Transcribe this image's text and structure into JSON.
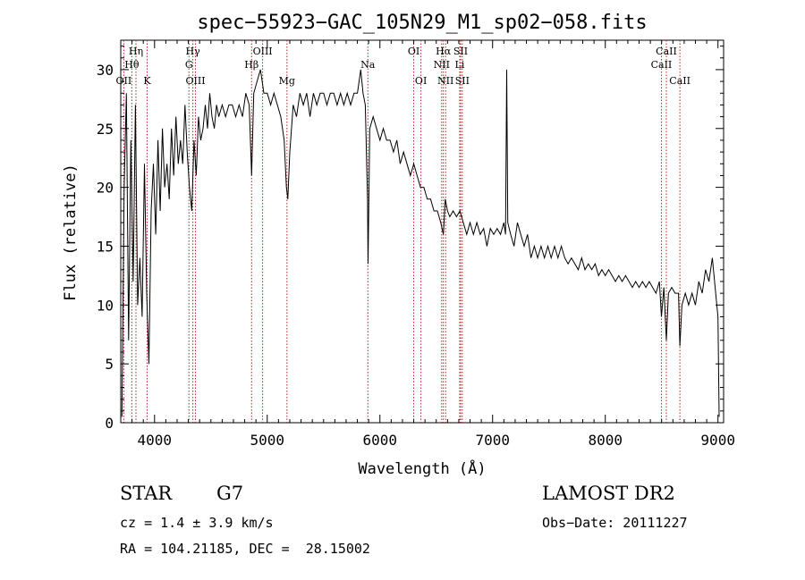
{
  "chart_data": {
    "type": "line",
    "title": "spec−55923−GAC_105N29_M1_sp02−058.fits",
    "xlabel": "Wavelength (Å)",
    "ylabel": "Flux (relative)",
    "xlim": [
      3700,
      9050
    ],
    "ylim": [
      0,
      32.5
    ],
    "xticks": [
      4000,
      5000,
      6000,
      7000,
      8000,
      9000
    ],
    "yticks": [
      0,
      5,
      10,
      15,
      20,
      25,
      30
    ],
    "grid": false,
    "line_color": "#000000",
    "marker_color": "#b22222",
    "spectrum": [
      [
        3710,
        0.5
      ],
      [
        3730,
        20
      ],
      [
        3750,
        28
      ],
      [
        3770,
        7
      ],
      [
        3790,
        24
      ],
      [
        3810,
        12
      ],
      [
        3830,
        27
      ],
      [
        3850,
        10
      ],
      [
        3870,
        14
      ],
      [
        3890,
        9
      ],
      [
        3910,
        22
      ],
      [
        3930,
        11
      ],
      [
        3950,
        5
      ],
      [
        3970,
        18
      ],
      [
        3990,
        22
      ],
      [
        4010,
        16
      ],
      [
        4030,
        24
      ],
      [
        4050,
        18
      ],
      [
        4070,
        25
      ],
      [
        4090,
        20
      ],
      [
        4110,
        22
      ],
      [
        4130,
        19
      ],
      [
        4150,
        25
      ],
      [
        4170,
        21
      ],
      [
        4190,
        26
      ],
      [
        4210,
        22
      ],
      [
        4230,
        24
      ],
      [
        4250,
        22
      ],
      [
        4270,
        27
      ],
      [
        4290,
        23
      ],
      [
        4310,
        20
      ],
      [
        4330,
        18
      ],
      [
        4350,
        24
      ],
      [
        4370,
        21
      ],
      [
        4390,
        26
      ],
      [
        4410,
        24
      ],
      [
        4430,
        25
      ],
      [
        4450,
        27
      ],
      [
        4470,
        25
      ],
      [
        4490,
        28
      ],
      [
        4510,
        26
      ],
      [
        4530,
        25
      ],
      [
        4550,
        27
      ],
      [
        4570,
        26
      ],
      [
        4600,
        27
      ],
      [
        4630,
        26
      ],
      [
        4660,
        27
      ],
      [
        4690,
        27
      ],
      [
        4720,
        26
      ],
      [
        4750,
        27
      ],
      [
        4780,
        26
      ],
      [
        4810,
        28
      ],
      [
        4840,
        27
      ],
      [
        4861,
        21
      ],
      [
        4880,
        28
      ],
      [
        4910,
        29
      ],
      [
        4940,
        30
      ],
      [
        4970,
        28
      ],
      [
        5000,
        28
      ],
      [
        5030,
        27
      ],
      [
        5060,
        28
      ],
      [
        5090,
        27
      ],
      [
        5120,
        26
      ],
      [
        5150,
        24
      ],
      [
        5170,
        20
      ],
      [
        5183,
        19
      ],
      [
        5200,
        23
      ],
      [
        5230,
        27
      ],
      [
        5260,
        26
      ],
      [
        5290,
        28
      ],
      [
        5320,
        27
      ],
      [
        5350,
        28
      ],
      [
        5380,
        26
      ],
      [
        5410,
        28
      ],
      [
        5440,
        27
      ],
      [
        5470,
        28
      ],
      [
        5500,
        28
      ],
      [
        5530,
        27
      ],
      [
        5560,
        28
      ],
      [
        5590,
        28
      ],
      [
        5620,
        27
      ],
      [
        5650,
        28
      ],
      [
        5680,
        27
      ],
      [
        5710,
        28
      ],
      [
        5740,
        27
      ],
      [
        5770,
        28
      ],
      [
        5800,
        28
      ],
      [
        5830,
        30
      ],
      [
        5850,
        28
      ],
      [
        5870,
        27
      ],
      [
        5890,
        19
      ],
      [
        5895,
        13.5
      ],
      [
        5910,
        25
      ],
      [
        5940,
        26
      ],
      [
        5970,
        25
      ],
      [
        6000,
        24
      ],
      [
        6030,
        25
      ],
      [
        6060,
        24
      ],
      [
        6090,
        24
      ],
      [
        6120,
        23
      ],
      [
        6150,
        24
      ],
      [
        6180,
        22
      ],
      [
        6210,
        23
      ],
      [
        6240,
        22
      ],
      [
        6270,
        21
      ],
      [
        6300,
        22
      ],
      [
        6330,
        21
      ],
      [
        6360,
        20
      ],
      [
        6390,
        20
      ],
      [
        6420,
        19
      ],
      [
        6450,
        19
      ],
      [
        6480,
        18
      ],
      [
        6510,
        18
      ],
      [
        6540,
        17
      ],
      [
        6563,
        16
      ],
      [
        6580,
        19
      ],
      [
        6600,
        18
      ],
      [
        6620,
        17.5
      ],
      [
        6650,
        18
      ],
      [
        6680,
        17.5
      ],
      [
        6710,
        18
      ],
      [
        6740,
        17
      ],
      [
        6770,
        16
      ],
      [
        6800,
        17
      ],
      [
        6830,
        16
      ],
      [
        6860,
        17
      ],
      [
        6890,
        16
      ],
      [
        6920,
        16.5
      ],
      [
        6950,
        15
      ],
      [
        6980,
        16.5
      ],
      [
        7010,
        16
      ],
      [
        7040,
        16.5
      ],
      [
        7070,
        16
      ],
      [
        7100,
        17
      ],
      [
        7115,
        16
      ],
      [
        7125,
        30
      ],
      [
        7135,
        17
      ],
      [
        7160,
        16
      ],
      [
        7190,
        15
      ],
      [
        7220,
        17
      ],
      [
        7250,
        16
      ],
      [
        7280,
        15
      ],
      [
        7310,
        16
      ],
      [
        7340,
        14
      ],
      [
        7370,
        15
      ],
      [
        7400,
        14
      ],
      [
        7430,
        15
      ],
      [
        7460,
        14
      ],
      [
        7490,
        15
      ],
      [
        7520,
        14
      ],
      [
        7550,
        15
      ],
      [
        7580,
        14
      ],
      [
        7610,
        15
      ],
      [
        7640,
        14
      ],
      [
        7670,
        13.5
      ],
      [
        7700,
        14
      ],
      [
        7730,
        13.5
      ],
      [
        7760,
        13
      ],
      [
        7790,
        14
      ],
      [
        7820,
        13
      ],
      [
        7850,
        13.5
      ],
      [
        7880,
        13
      ],
      [
        7910,
        13.5
      ],
      [
        7940,
        12.5
      ],
      [
        7970,
        13
      ],
      [
        8000,
        12.5
      ],
      [
        8030,
        13
      ],
      [
        8060,
        12.5
      ],
      [
        8090,
        12
      ],
      [
        8120,
        12.5
      ],
      [
        8150,
        12
      ],
      [
        8180,
        12.5
      ],
      [
        8210,
        12
      ],
      [
        8240,
        11.5
      ],
      [
        8270,
        12
      ],
      [
        8300,
        11.5
      ],
      [
        8330,
        12
      ],
      [
        8360,
        11.5
      ],
      [
        8390,
        12
      ],
      [
        8420,
        11.5
      ],
      [
        8450,
        11
      ],
      [
        8480,
        12
      ],
      [
        8498,
        9
      ],
      [
        8520,
        11.5
      ],
      [
        8542,
        7
      ],
      [
        8560,
        11
      ],
      [
        8590,
        11.5
      ],
      [
        8620,
        11
      ],
      [
        8650,
        11
      ],
      [
        8662,
        6.5
      ],
      [
        8680,
        10
      ],
      [
        8710,
        11
      ],
      [
        8740,
        10
      ],
      [
        8770,
        11
      ],
      [
        8800,
        10
      ],
      [
        8830,
        12
      ],
      [
        8860,
        11
      ],
      [
        8890,
        13
      ],
      [
        8920,
        12
      ],
      [
        8950,
        14
      ],
      [
        8970,
        12
      ],
      [
        8990,
        10
      ],
      [
        9000,
        9
      ],
      [
        9010,
        0.5
      ]
    ],
    "lines": [
      {
        "label": "Hη",
        "wavelength": 3835,
        "row": 1
      },
      {
        "label": "Hθ",
        "wavelength": 3798,
        "row": 2
      },
      {
        "label": "OII",
        "wavelength": 3727,
        "row": 3
      },
      {
        "label": "K",
        "wavelength": 3934,
        "row": 3
      },
      {
        "label": "Hγ",
        "wavelength": 4340,
        "row": 1
      },
      {
        "label": "G",
        "wavelength": 4305,
        "row": 2
      },
      {
        "label": "OIII",
        "wavelength": 4363,
        "row": 3
      },
      {
        "label": "OIII",
        "wavelength": 4959,
        "row": 1
      },
      {
        "label": "Hβ",
        "wavelength": 4861,
        "row": 2
      },
      {
        "label": "Mg",
        "wavelength": 5175,
        "row": 3
      },
      {
        "label": "Na",
        "wavelength": 5893,
        "row": 2
      },
      {
        "label": "OI",
        "wavelength": 6300,
        "row": 1
      },
      {
        "label": "OI",
        "wavelength": 6364,
        "row": 3
      },
      {
        "label": "Hα",
        "wavelength": 6563,
        "row": 1
      },
      {
        "label": "SII",
        "wavelength": 6716,
        "row": 1
      },
      {
        "label": "NII",
        "wavelength": 6548,
        "row": 2
      },
      {
        "label": "Li",
        "wavelength": 6708,
        "row": 2
      },
      {
        "label": "NII",
        "wavelength": 6583,
        "row": 3
      },
      {
        "label": "SII",
        "wavelength": 6731,
        "row": 3
      },
      {
        "label": "CaII",
        "wavelength": 8542,
        "row": 1
      },
      {
        "label": "CaII",
        "wavelength": 8498,
        "row": 2
      },
      {
        "label": "CaII",
        "wavelength": 8662,
        "row": 3
      }
    ]
  },
  "info": {
    "class": "STAR",
    "subclass": "G7",
    "survey": "LAMOST DR2",
    "cz": "cz = 1.4 ± 3.9 km/s",
    "obs_date": "Obs−Date: 20111227",
    "coords": "RA = 104.21185, DEC =  28.15002"
  }
}
